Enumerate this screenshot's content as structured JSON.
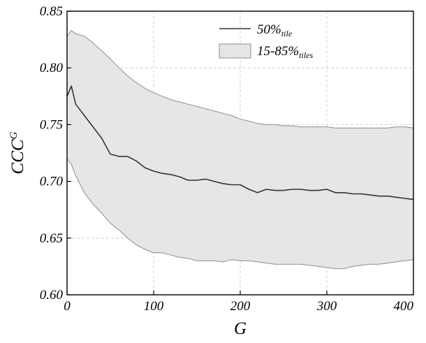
{
  "chart_data": {
    "type": "line",
    "xlabel": "G",
    "ylabel_main": "CCC",
    "ylabel_sup": "G",
    "xlim": [
      0,
      400
    ],
    "ylim": [
      0.6,
      0.85
    ],
    "x_ticks": [
      0,
      100,
      200,
      300,
      400
    ],
    "x_tick_labels": [
      "0",
      "100",
      "200",
      "300",
      "400"
    ],
    "y_ticks": [
      0.6,
      0.65,
      0.7,
      0.75,
      0.8,
      0.85
    ],
    "y_tick_labels": [
      "0.60",
      "0.65",
      "0.70",
      "0.75",
      "0.80",
      "0.85"
    ],
    "grid": true,
    "legend_position": "top-right",
    "legend": [
      {
        "main": "50%",
        "sub": "tile",
        "kind": "line"
      },
      {
        "main": "15-85%",
        "sub": "tiles",
        "kind": "band"
      }
    ],
    "colors": {
      "median": "#333333",
      "band_fill": "#e6e6e6",
      "band_edge": "#8c8c8c",
      "grid": "#c8c8c8"
    },
    "series": [
      {
        "kind": "line",
        "x": [
          0,
          5,
          10,
          20,
          30,
          40,
          50,
          60,
          70,
          80,
          90,
          100,
          110,
          120,
          130,
          140,
          150,
          160,
          170,
          180,
          190,
          200,
          210,
          220,
          230,
          240,
          250,
          260,
          270,
          280,
          290,
          300,
          310,
          320,
          330,
          340,
          350,
          360,
          370,
          380,
          390,
          400
        ],
        "values": [
          0.775,
          0.784,
          0.768,
          0.758,
          0.748,
          0.738,
          0.724,
          0.722,
          0.722,
          0.718,
          0.712,
          0.709,
          0.707,
          0.706,
          0.704,
          0.701,
          0.701,
          0.702,
          0.7,
          0.698,
          0.697,
          0.697,
          0.693,
          0.69,
          0.693,
          0.692,
          0.692,
          0.693,
          0.693,
          0.692,
          0.692,
          0.693,
          0.69,
          0.69,
          0.689,
          0.689,
          0.688,
          0.687,
          0.687,
          0.686,
          0.685,
          0.684
        ]
      },
      {
        "kind": "band",
        "x": [
          0,
          5,
          10,
          20,
          30,
          40,
          50,
          60,
          70,
          80,
          90,
          100,
          110,
          120,
          130,
          140,
          150,
          160,
          170,
          180,
          190,
          200,
          210,
          220,
          230,
          240,
          250,
          260,
          270,
          280,
          290,
          300,
          310,
          320,
          330,
          340,
          350,
          360,
          370,
          380,
          390,
          400
        ],
        "upper": [
          0.828,
          0.833,
          0.83,
          0.828,
          0.822,
          0.815,
          0.808,
          0.8,
          0.793,
          0.787,
          0.782,
          0.778,
          0.775,
          0.772,
          0.77,
          0.768,
          0.766,
          0.764,
          0.762,
          0.76,
          0.758,
          0.755,
          0.753,
          0.751,
          0.75,
          0.75,
          0.749,
          0.749,
          0.748,
          0.748,
          0.748,
          0.748,
          0.747,
          0.747,
          0.747,
          0.747,
          0.747,
          0.747,
          0.747,
          0.748,
          0.748,
          0.747
        ],
        "lower": [
          0.72,
          0.715,
          0.705,
          0.69,
          0.68,
          0.672,
          0.663,
          0.657,
          0.65,
          0.644,
          0.64,
          0.637,
          0.637,
          0.635,
          0.633,
          0.632,
          0.63,
          0.63,
          0.63,
          0.629,
          0.631,
          0.63,
          0.63,
          0.629,
          0.628,
          0.627,
          0.627,
          0.627,
          0.627,
          0.626,
          0.625,
          0.624,
          0.623,
          0.623,
          0.625,
          0.626,
          0.627,
          0.627,
          0.628,
          0.629,
          0.63,
          0.631
        ]
      }
    ]
  }
}
